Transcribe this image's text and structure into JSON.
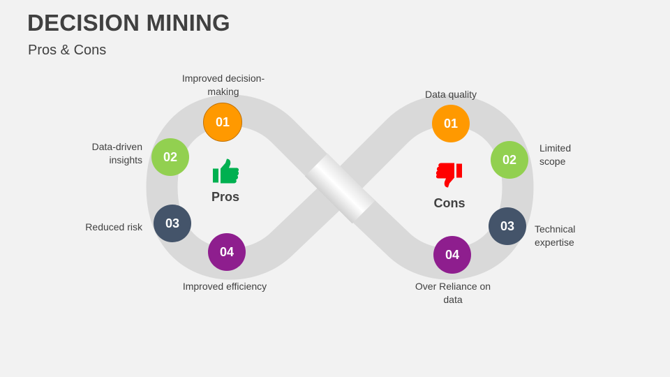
{
  "header": {
    "title": "DECISION MINING",
    "subtitle": "Pros & Cons"
  },
  "colors": {
    "orange": "#ff9900",
    "green": "#92d050",
    "slate": "#44546a",
    "purple": "#8e1e8e",
    "thumbs_up": "#00b050",
    "thumbs_down": "#ff0000",
    "band": "#d9d9d9"
  },
  "pros": {
    "label": "Pros",
    "icon": "thumbs-up-icon",
    "items": [
      {
        "num": "01",
        "text": "Improved decision-",
        "text2": "making"
      },
      {
        "num": "02",
        "text": "Data-driven",
        "text2": "insights"
      },
      {
        "num": "03",
        "text": "Reduced risk"
      },
      {
        "num": "04",
        "text": "Improved efficiency"
      }
    ]
  },
  "cons": {
    "label": "Cons",
    "icon": "thumbs-down-icon",
    "items": [
      {
        "num": "01",
        "text": "Data quality"
      },
      {
        "num": "02",
        "text": "Limited",
        "text2": "scope"
      },
      {
        "num": "03",
        "text": "Technical",
        "text2": "expertise"
      },
      {
        "num": "04",
        "text": "Over Reliance on",
        "text2": "data"
      }
    ]
  }
}
